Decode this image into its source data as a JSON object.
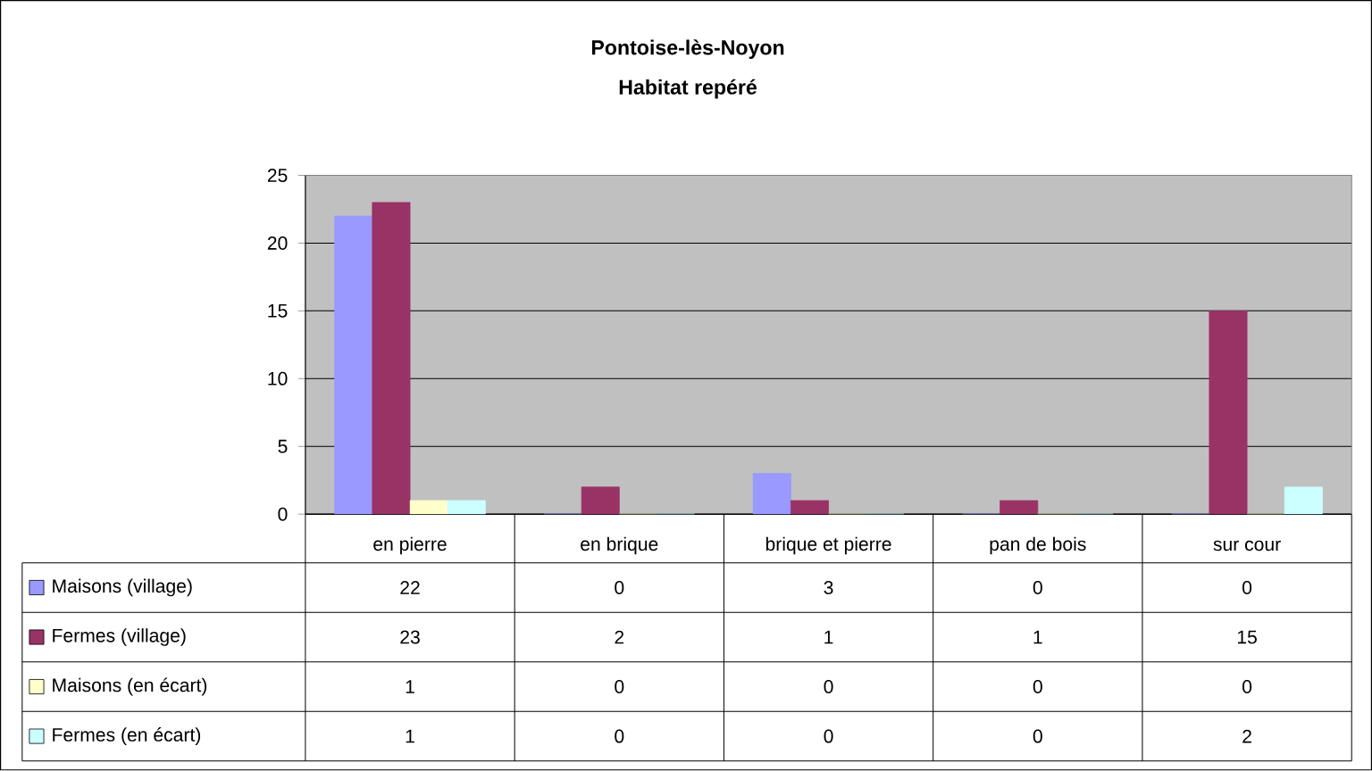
{
  "chart_data": {
    "type": "bar",
    "title": "Pontoise-lès-Noyon",
    "subtitle": "Habitat repéré",
    "categories": [
      "en pierre",
      "en brique",
      "brique et pierre",
      "pan de bois",
      "sur cour"
    ],
    "series": [
      {
        "name": "Maisons (village)",
        "color": "#9999ff",
        "values": [
          22,
          0,
          3,
          0,
          0
        ]
      },
      {
        "name": "Fermes (village)",
        "color": "#993366",
        "values": [
          23,
          2,
          1,
          1,
          15
        ]
      },
      {
        "name": "Maisons (en écart)",
        "color": "#ffffcc",
        "values": [
          1,
          0,
          0,
          0,
          0
        ]
      },
      {
        "name": "Fermes (en écart)",
        "color": "#ccffff",
        "values": [
          1,
          0,
          0,
          0,
          2
        ]
      }
    ],
    "ylim": [
      0,
      25
    ],
    "yticks": [
      0,
      5,
      10,
      15,
      20,
      25
    ],
    "grid": "y",
    "legend": "bottom left",
    "data_labels": true
  }
}
